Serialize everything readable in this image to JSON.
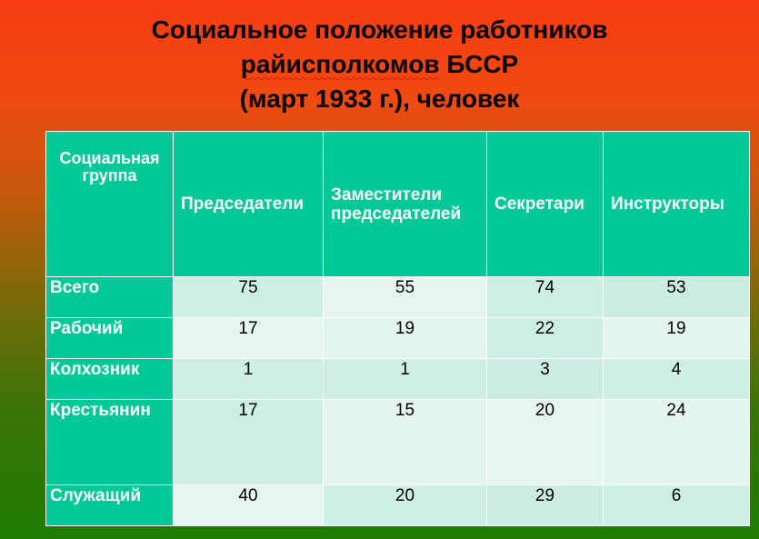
{
  "title": {
    "line1": "Социальное положение работников",
    "line2_word": "райисполкомов",
    "line2_rest": " БССР",
    "line3": "(март 1933 г.), человек"
  },
  "table": {
    "columns": [
      "Социальная группа",
      "Председатели",
      "Заместители председателей",
      "Секретари",
      "Инструкторы"
    ],
    "rows": [
      {
        "label": "Всего",
        "values": [
          "75",
          "55",
          "74",
          "53"
        ]
      },
      {
        "label": "Рабочий",
        "values": [
          "17",
          "19",
          "22",
          "19"
        ]
      },
      {
        "label": "Колхозник",
        "values": [
          "1",
          "1",
          "3",
          "4"
        ]
      },
      {
        "label": "Крестьянин",
        "values": [
          "17",
          "15",
          "20",
          "24"
        ]
      },
      {
        "label": "Служащий",
        "values": [
          "40",
          "20",
          "29",
          "6"
        ]
      }
    ]
  },
  "colors": {
    "header_fill": "#00c896",
    "header_text": "#ffffff",
    "background_top": "#f53c12",
    "background_bottom": "#1e7c04"
  }
}
